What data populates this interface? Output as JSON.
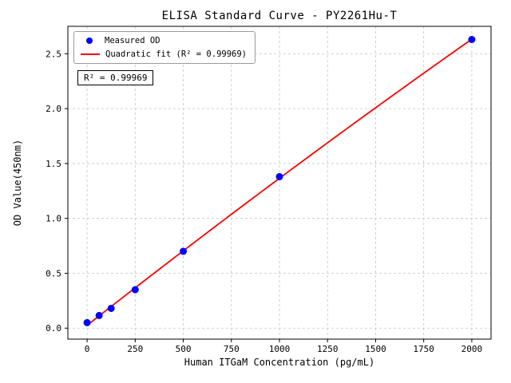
{
  "chart_data": {
    "type": "scatter",
    "title": "ELISA Standard Curve - PY2261Hu-T",
    "xlabel": "Human ITGaM Concentration (pg/mL)",
    "ylabel": "OD Value(450nm)",
    "xlim": [
      -100,
      2100
    ],
    "ylim": [
      -0.1,
      2.75
    ],
    "xticks": [
      "0",
      "250",
      "500",
      "750",
      "1000",
      "1250",
      "1500",
      "1750",
      "2000"
    ],
    "yticks": [
      "0.0",
      "0.5",
      "1.0",
      "1.5",
      "2.0",
      "2.5"
    ],
    "grid": true,
    "legend": {
      "position": "upper-left",
      "entries": [
        {
          "label": "Measured OD",
          "marker": "circle",
          "color": "#0000ff"
        },
        {
          "label": "Quadratic fit (R² = 0.99969)",
          "marker": "line",
          "color": "#ff0000"
        }
      ]
    },
    "annotation": "R² = 0.99969",
    "series": [
      {
        "name": "Measured OD",
        "type": "scatter",
        "color": "#0000ff",
        "x": [
          0,
          62.5,
          125,
          250,
          500,
          1000,
          2000
        ],
        "y": [
          0.05,
          0.115,
          0.18,
          0.35,
          0.7,
          1.38,
          2.63
        ]
      },
      {
        "name": "Quadratic fit",
        "type": "line",
        "color": "#ff0000",
        "fit_of": "Measured OD",
        "r_squared": 0.99969
      }
    ]
  }
}
